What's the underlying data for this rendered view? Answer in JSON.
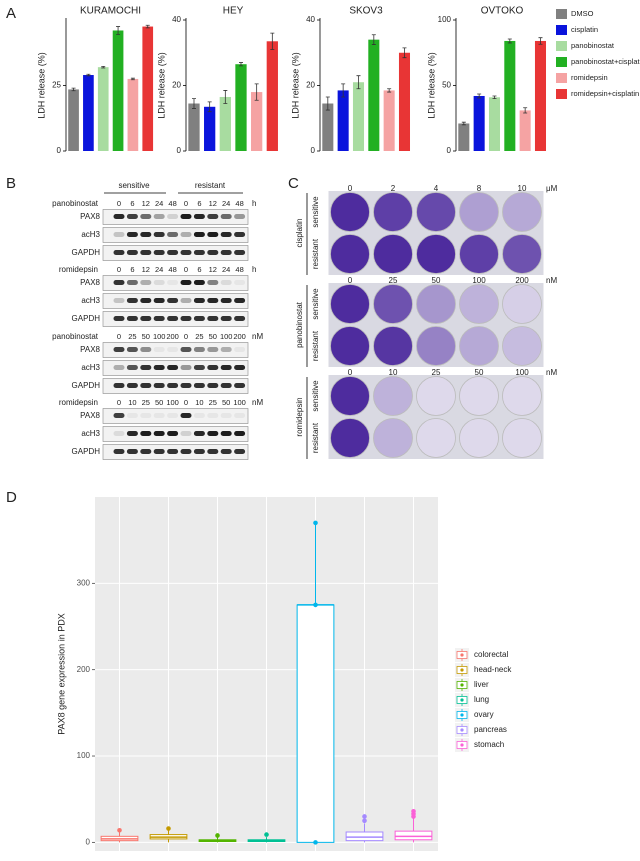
{
  "panel_a": {
    "label": "A",
    "legend": [
      {
        "name": "DMSO",
        "color": "#808080"
      },
      {
        "name": "cisplatin",
        "color": "#0a14dc"
      },
      {
        "name": "panobinostat",
        "color": "#a8dca0"
      },
      {
        "name": "panobinostat+cisplatin",
        "color": "#22b022"
      },
      {
        "name": "romidepsin",
        "color": "#f5a3a3"
      },
      {
        "name": "romidepsin+cisplatin",
        "color": "#e83535"
      }
    ]
  },
  "chart_data": [
    {
      "type": "bar",
      "title": "KURAMOCHI",
      "y_label": "LDH release (%)",
      "values": [
        23.5,
        29,
        32,
        46,
        27.5,
        47.5
      ],
      "errors": [
        0.5,
        0.3,
        0.3,
        1.5,
        0.3,
        0.5
      ],
      "ylim": [
        0,
        50
      ],
      "yticks": [
        0,
        25
      ]
    },
    {
      "type": "bar",
      "title": "HEY",
      "y_label": "LDH release (%)",
      "values": [
        14.5,
        13.5,
        16.5,
        26.5,
        18,
        33.5
      ],
      "errors": [
        1.5,
        1.5,
        2,
        0.5,
        2.5,
        2.5
      ],
      "ylim": [
        0,
        40
      ],
      "yticks": [
        0,
        20,
        40
      ]
    },
    {
      "type": "bar",
      "title": "SKOV3",
      "y_label": "LDH release (%)",
      "values": [
        14.5,
        18.5,
        21,
        34,
        18.5,
        30
      ],
      "errors": [
        2,
        2,
        2,
        1.5,
        0.5,
        1.5
      ],
      "ylim": [
        0,
        40
      ],
      "yticks": [
        0,
        20,
        40
      ]
    },
    {
      "type": "bar",
      "title": "OVTOKO",
      "y_label": "LDH release (%)",
      "values": [
        21,
        42,
        41,
        84,
        31,
        84
      ],
      "errors": [
        1,
        1.5,
        1,
        1.5,
        2,
        2.5
      ],
      "ylim": [
        0,
        100
      ],
      "yticks": [
        0,
        50,
        100
      ]
    },
    {
      "type": "box",
      "y_label": "PAX8 gene expression in PDX",
      "categories": [
        "colorectal",
        "head-neck",
        "liver",
        "lung",
        "ovary",
        "pancreas",
        "stomach"
      ],
      "colors": [
        "#F8766D",
        "#C49A00",
        "#53B400",
        "#00C094",
        "#00B6EB",
        "#A58AFF",
        "#FB61D7"
      ],
      "whislo": [
        0,
        0,
        0,
        0,
        0,
        0,
        0
      ],
      "q1": [
        2,
        4,
        1,
        1,
        0,
        2,
        3
      ],
      "median": [
        4,
        6,
        2,
        2,
        275,
        6,
        7
      ],
      "q3": [
        7,
        9,
        3,
        3,
        275,
        12,
        13
      ],
      "whishi": [
        12,
        14,
        6,
        6,
        370,
        22,
        28
      ],
      "outliers": [
        [
          14
        ],
        [
          16
        ],
        [
          8
        ],
        [
          9
        ],
        [
          0,
          275,
          370
        ],
        [
          25,
          30
        ],
        [
          30,
          33,
          36
        ]
      ],
      "ylim": [
        -10,
        400
      ],
      "yticks": [
        0,
        100,
        200,
        300
      ],
      "grid": true
    }
  ],
  "panel_b": {
    "label": "B",
    "groups": [
      "sensitive",
      "resistant"
    ],
    "blocks": [
      {
        "drug": "panobinostat",
        "doses": [
          "0",
          "6",
          "12",
          "24",
          "48",
          "0",
          "6",
          "12",
          "24",
          "48"
        ],
        "unit": "h",
        "rows": [
          "PAX8",
          "acH3",
          "GAPDH"
        ]
      },
      {
        "drug": "romidepsin",
        "doses": [
          "0",
          "6",
          "12",
          "24",
          "48",
          "0",
          "6",
          "12",
          "24",
          "48"
        ],
        "unit": "h",
        "rows": [
          "PAX8",
          "acH3",
          "GAPDH"
        ]
      },
      {
        "drug": "panobinostat",
        "doses": [
          "0",
          "25",
          "50",
          "100",
          "200",
          "0",
          "25",
          "50",
          "100",
          "200"
        ],
        "unit": "nM",
        "rows": [
          "PAX8",
          "acH3",
          "GAPDH"
        ]
      },
      {
        "drug": "romidepsin",
        "doses": [
          "0",
          "10",
          "25",
          "50",
          "100",
          "0",
          "10",
          "25",
          "50",
          "100"
        ],
        "unit": "nM",
        "rows": [
          "PAX8",
          "acH3",
          "GAPDH"
        ]
      }
    ]
  },
  "panel_c": {
    "label": "C",
    "blocks": [
      {
        "drug": "cisplatin",
        "doses": [
          "0",
          "2",
          "4",
          "8",
          "10"
        ],
        "unit": "μM",
        "rows": [
          "sensitive",
          "resistant"
        ]
      },
      {
        "drug": "panobinostat",
        "doses": [
          "0",
          "25",
          "50",
          "100",
          "200"
        ],
        "unit": "nM",
        "rows": [
          "sensitive",
          "resistant"
        ]
      },
      {
        "drug": "romidepsin",
        "doses": [
          "0",
          "10",
          "25",
          "50",
          "100"
        ],
        "unit": "nM",
        "rows": [
          "sensitive",
          "resistant"
        ]
      }
    ]
  },
  "panel_d": {
    "label": "D"
  }
}
